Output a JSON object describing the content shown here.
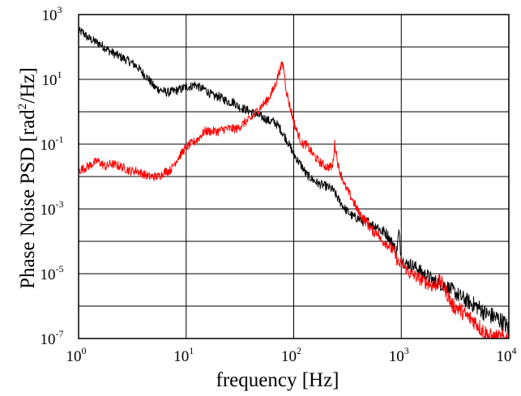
{
  "chart_data": {
    "type": "line",
    "xlabel": "frequency [Hz]",
    "ylabel": {
      "prefix": "Phase Noise PSD [rad",
      "superscript": "2",
      "suffix": "/Hz]"
    },
    "xscale": "log",
    "yscale": "log",
    "xlim": [
      1,
      10000
    ],
    "ylim": [
      1e-07,
      1000
    ],
    "grid": true,
    "x_ticks": [
      {
        "value": 1,
        "base": "10",
        "exp": "0"
      },
      {
        "value": 10,
        "base": "10",
        "exp": "1"
      },
      {
        "value": 100,
        "base": "10",
        "exp": "2"
      },
      {
        "value": 1000,
        "base": "10",
        "exp": "3"
      },
      {
        "value": 10000,
        "base": "10",
        "exp": "4"
      }
    ],
    "y_ticks": [
      {
        "value": 1e-07,
        "base": "10",
        "exp": "-7"
      },
      {
        "value": 1e-05,
        "base": "10",
        "exp": "-5"
      },
      {
        "value": 0.001,
        "base": "10",
        "exp": "-3"
      },
      {
        "value": 0.1,
        "base": "10",
        "exp": "-1"
      },
      {
        "value": 10,
        "base": "10",
        "exp": "1"
      },
      {
        "value": 1000,
        "base": "10",
        "exp": "3"
      }
    ],
    "y_gridlines": [
      1e-07,
      1e-06,
      1e-05,
      0.0001,
      0.001,
      0.01,
      0.1,
      1,
      10,
      100,
      1000
    ],
    "series": [
      {
        "color": "#000000",
        "x": [
          1,
          1.1,
          1.2,
          1.4,
          1.6,
          1.8,
          2,
          2.3,
          2.6,
          3,
          3.5,
          4,
          4.5,
          5,
          5.5,
          6,
          6.5,
          7,
          8,
          9,
          10,
          11,
          12,
          13,
          14,
          15,
          16,
          18,
          20,
          22,
          25,
          28,
          30,
          35,
          40,
          45,
          50,
          55,
          60,
          65,
          70,
          75,
          80,
          85,
          90,
          95,
          100,
          110,
          120,
          130,
          150,
          170,
          200,
          230,
          260,
          300,
          350,
          400,
          450,
          500,
          550,
          600,
          650,
          700,
          750,
          800,
          850,
          900,
          950,
          1000,
          1100,
          1200,
          1400,
          1600,
          1800,
          2000,
          2300,
          2600,
          3000,
          3500,
          4000,
          4500,
          5000,
          5500,
          6000,
          7000,
          8000,
          9000,
          10000
        ],
        "y": [
          300,
          280,
          200,
          150,
          120,
          90,
          70,
          55,
          45,
          35,
          25,
          15,
          10,
          6,
          5,
          4.5,
          4,
          4,
          4.5,
          5,
          6,
          6,
          7,
          6,
          5,
          5,
          4,
          3,
          3,
          2.5,
          2,
          2,
          1.5,
          1.2,
          1,
          0.8,
          0.7,
          0.6,
          0.5,
          0.5,
          0.4,
          0.3,
          0.2,
          0.15,
          0.1,
          0.07,
          0.05,
          0.03,
          0.02,
          0.012,
          0.008,
          0.006,
          0.005,
          0.004,
          0.002,
          0.001,
          0.0006,
          0.0005,
          0.0004,
          0.0004,
          0.0003,
          0.0003,
          0.0002,
          0.0002,
          0.00015,
          0.0001,
          8e-05,
          4e-05,
          0.0002,
          3e-05,
          2e-05,
          2e-05,
          1.5e-05,
          1e-05,
          8e-06,
          6e-06,
          5e-06,
          4e-06,
          3e-06,
          2e-06,
          1.5e-06,
          1.2e-06,
          1e-06,
          8e-07,
          6e-07,
          5e-07,
          4e-07,
          3e-07,
          2e-07
        ]
      },
      {
        "color": "#ff0000",
        "x": [
          1,
          1.2,
          1.5,
          1.8,
          2,
          2.5,
          3,
          3.5,
          4,
          4.5,
          5,
          5.5,
          6,
          6.5,
          7,
          7.5,
          8,
          8.5,
          9,
          10,
          11,
          12,
          13,
          14,
          15,
          17,
          20,
          23,
          26,
          30,
          33,
          36,
          40,
          45,
          50,
          55,
          60,
          65,
          70,
          72,
          75,
          78,
          80,
          82,
          85,
          90,
          95,
          100,
          105,
          110,
          120,
          130,
          150,
          170,
          200,
          230,
          240,
          250,
          260,
          280,
          300,
          350,
          400,
          450,
          500,
          550,
          600,
          650,
          700,
          750,
          800,
          850,
          900,
          950,
          1000,
          1100,
          1200,
          1400,
          1600,
          1800,
          2000,
          2300,
          2600,
          3000,
          3500,
          4000,
          4500,
          5000,
          5500,
          6000,
          7000,
          8000,
          9000,
          10000
        ],
        "y": [
          0.015,
          0.02,
          0.03,
          0.02,
          0.025,
          0.02,
          0.015,
          0.015,
          0.012,
          0.01,
          0.01,
          0.01,
          0.012,
          0.015,
          0.015,
          0.02,
          0.03,
          0.04,
          0.05,
          0.08,
          0.1,
          0.12,
          0.15,
          0.2,
          0.25,
          0.25,
          0.25,
          0.3,
          0.3,
          0.3,
          0.4,
          0.5,
          0.6,
          1,
          1.5,
          2,
          3,
          5,
          10,
          15,
          20,
          30,
          25,
          15,
          5,
          2,
          1,
          0.5,
          0.3,
          0.2,
          0.1,
          0.1,
          0.05,
          0.03,
          0.02,
          0.02,
          0.1,
          0.05,
          0.02,
          0.01,
          0.005,
          0.002,
          0.0008,
          0.0005,
          0.0003,
          0.0002,
          0.0002,
          0.0001,
          0.0001,
          8e-05,
          6e-05,
          5e-05,
          3e-05,
          2e-05,
          2e-05,
          1.5e-05,
          1e-05,
          8e-06,
          6e-06,
          5e-06,
          4e-06,
          6e-06,
          3e-06,
          1e-06,
          8e-07,
          5e-07,
          4e-07,
          3e-07,
          2e-07,
          1.5e-07,
          1e-07,
          1e-07,
          1e-07,
          1e-07
        ]
      }
    ]
  }
}
